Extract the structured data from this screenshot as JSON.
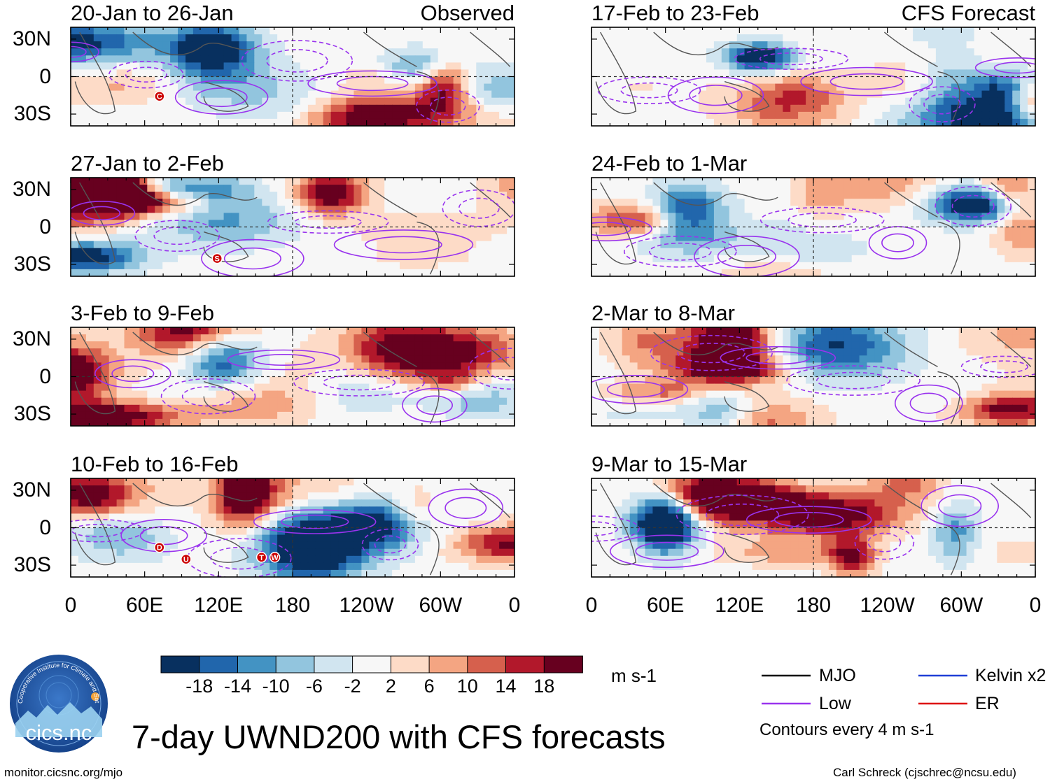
{
  "main_title": "7-day UWND200 with CFS forecasts",
  "footer": {
    "left": "monitor.cicsnc.org/mjo",
    "right": "Carl Schreck (cjschrec@ncsu.edu)"
  },
  "logo": {
    "text": "cics.nc",
    "ring_text": "Cooperative Institute for Climate and Satellites"
  },
  "panels": [
    {
      "period": "20-Jan to 26-Jan",
      "label": "Observed",
      "source": "observed",
      "markers": [
        "C"
      ]
    },
    {
      "period": "27-Jan to 2-Feb",
      "label": "",
      "source": "observed",
      "markers": [
        "S"
      ]
    },
    {
      "period": "3-Feb to 9-Feb",
      "label": "",
      "source": "observed",
      "markers": []
    },
    {
      "period": "10-Feb to 16-Feb",
      "label": "",
      "source": "observed",
      "markers": [
        "D",
        "U",
        "T",
        "W"
      ]
    },
    {
      "period": "17-Feb to 23-Feb",
      "label": "CFS Forecast",
      "source": "forecast",
      "markers": []
    },
    {
      "period": "24-Feb to 1-Mar",
      "label": "",
      "source": "forecast",
      "markers": []
    },
    {
      "period": "2-Mar to 8-Mar",
      "label": "",
      "source": "forecast",
      "markers": []
    },
    {
      "period": "9-Mar to 15-Mar",
      "label": "",
      "source": "forecast",
      "markers": []
    }
  ],
  "y_ticks": [
    "30N",
    "0",
    "30S"
  ],
  "x_ticks": [
    "0",
    "60E",
    "120E",
    "180",
    "120W",
    "60W",
    "0"
  ],
  "colorbar": {
    "units": "m s-1",
    "labels": [
      "-18",
      "-14",
      "-10",
      "-6",
      "-2",
      "2",
      "6",
      "10",
      "14",
      "18"
    ],
    "colors": [
      "#08305f",
      "#2166ac",
      "#4393c3",
      "#92c5de",
      "#d1e5f0",
      "#f7f7f7",
      "#fddbc7",
      "#f4a582",
      "#d6604d",
      "#b2182b",
      "#67001f"
    ]
  },
  "legend": {
    "items": [
      {
        "label": "MJO",
        "color": "#000000"
      },
      {
        "label": "Kelvin x2",
        "color": "#1f3fd6"
      },
      {
        "label": "Low",
        "color": "#9933ee"
      },
      {
        "label": "ER",
        "color": "#dd0000"
      }
    ],
    "note": "Contours every 4 m s-1"
  }
}
